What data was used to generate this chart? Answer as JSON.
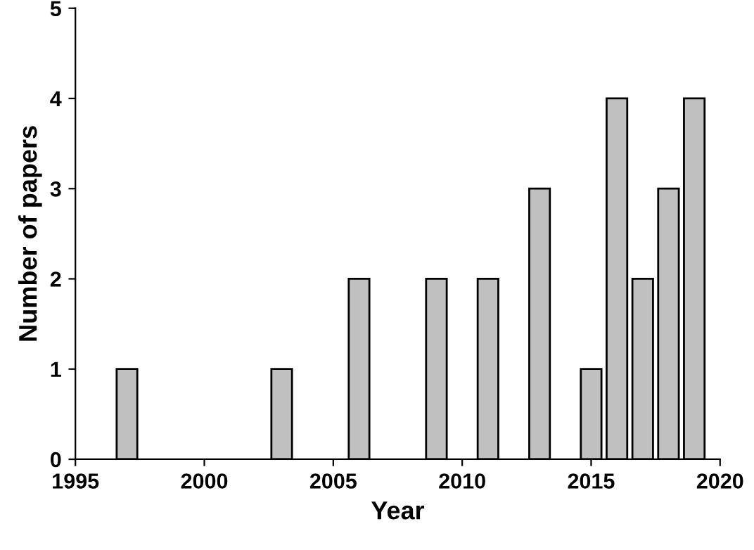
{
  "chart_data": {
    "type": "bar",
    "xlabel": "Year",
    "ylabel": "Number of papers",
    "x": [
      1997,
      2003,
      2006,
      2009,
      2011,
      2013,
      2015,
      2016,
      2017,
      2018,
      2019
    ],
    "values": [
      1,
      1,
      2,
      2,
      2,
      3,
      1,
      4,
      2,
      3,
      4
    ],
    "color": "#c0c0c0",
    "xlim": [
      1995,
      2020
    ],
    "xticks": [
      1995,
      2000,
      2005,
      2010,
      2015,
      2020
    ],
    "ylim": [
      0,
      5
    ],
    "yticks": [
      0,
      1,
      2,
      3,
      4,
      5
    ],
    "grid": false
  }
}
